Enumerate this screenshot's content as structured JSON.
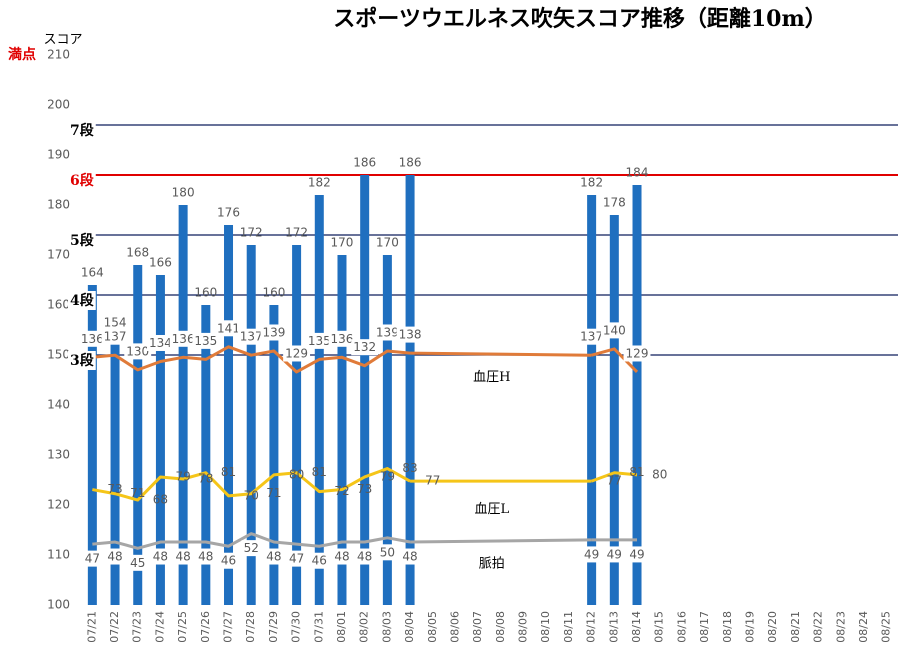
{
  "chart_data": {
    "type": "bar",
    "title": "スポーツウエルネス吹矢スコア推移（距離10m）",
    "y_label": "スコア",
    "full_mark_label": "満点",
    "categories": [
      "07/21",
      "07/22",
      "07/23",
      "07/24",
      "07/25",
      "07/26",
      "07/27",
      "07/28",
      "07/29",
      "07/30",
      "07/31",
      "08/01",
      "08/02",
      "08/03",
      "08/04",
      "08/05",
      "08/06",
      "08/07",
      "08/08",
      "08/09",
      "08/10",
      "08/11",
      "08/12",
      "08/13",
      "08/14",
      "08/15",
      "08/16",
      "08/17",
      "08/18",
      "08/19",
      "08/20",
      "08/21",
      "08/22",
      "08/23",
      "08/24",
      "08/25"
    ],
    "series": [
      {
        "color": "#1f6fbf",
        "values": [
          164,
          154,
          168,
          166,
          180,
          160,
          176,
          172,
          160,
          172,
          182,
          170,
          186,
          170,
          186,
          null,
          null,
          null,
          null,
          null,
          null,
          null,
          182,
          178,
          184,
          null,
          null,
          null,
          null,
          null,
          null,
          null,
          null,
          null,
          null,
          null
        ]
      },
      {
        "name": "血圧H",
        "type": "line",
        "axis": "y2",
        "color": "#e07b39",
        "values": [
          136,
          137,
          130,
          134,
          136,
          135,
          141,
          137,
          139,
          129,
          135,
          136,
          132,
          139,
          138,
          null,
          null,
          null,
          null,
          null,
          null,
          null,
          137,
          140,
          129,
          null,
          null,
          null,
          null,
          null,
          null,
          null,
          null,
          null,
          null,
          null
        ]
      },
      {
        "name": "血圧L",
        "type": "line",
        "axis": "y2",
        "color": "#f5c518",
        "values": [
          73,
          71,
          68,
          79,
          78,
          81,
          70,
          71,
          80,
          81,
          72,
          73,
          79,
          83,
          77,
          null,
          null,
          null,
          null,
          null,
          null,
          null,
          77,
          81,
          80,
          null,
          null,
          null,
          null,
          null,
          null,
          null,
          null,
          null,
          null,
          null
        ]
      },
      {
        "name": "脈拍",
        "type": "line",
        "axis": "y2",
        "color": "#a6a6a6",
        "values": [
          47,
          48,
          45,
          48,
          48,
          48,
          46,
          52,
          48,
          47,
          46,
          48,
          48,
          50,
          48,
          null,
          null,
          null,
          null,
          null,
          null,
          null,
          49,
          49,
          49,
          null,
          null,
          null,
          null,
          null,
          null,
          null,
          null,
          null,
          null,
          null
        ]
      }
    ],
    "ylim": [
      100,
      210
    ],
    "yticks": [
      100,
      110,
      120,
      130,
      140,
      150,
      160,
      170,
      180,
      190,
      200,
      210
    ],
    "y2lim": [
      18,
      280
    ],
    "span_gaps": true,
    "levels": [
      {
        "label": "7段",
        "value": 196,
        "color": "#0d1f5c"
      },
      {
        "label": "6段",
        "value": 186,
        "color": "#e00000"
      },
      {
        "label": "5段",
        "value": 174,
        "color": "#0d1f5c"
      },
      {
        "label": "4段",
        "value": 162,
        "color": "#0d1f5c"
      },
      {
        "label": "3段",
        "value": 150,
        "color": "#0d1f5c"
      }
    ]
  }
}
